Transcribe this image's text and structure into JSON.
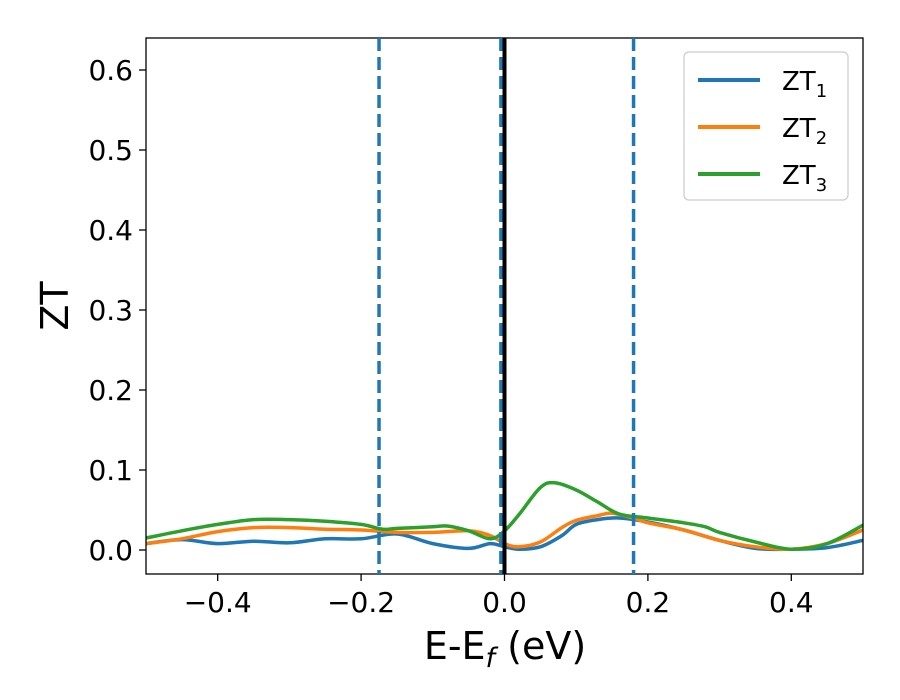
{
  "chart_data": {
    "type": "line",
    "xlabel": "E-E",
    "xlabel_sub": "f",
    "xlabel_unit": " (eV)",
    "ylabel": "ZT",
    "xlim": [
      -0.5,
      0.5
    ],
    "ylim": [
      -0.03,
      0.64
    ],
    "xticks": [
      -0.4,
      -0.2,
      0.0,
      0.2,
      0.4
    ],
    "xtick_labels": [
      "−0.4",
      "−0.2",
      "0.0",
      "0.2",
      "0.4"
    ],
    "yticks": [
      0.0,
      0.1,
      0.2,
      0.3,
      0.4,
      0.5,
      0.6
    ],
    "ytick_labels": [
      "0.0",
      "0.1",
      "0.2",
      "0.3",
      "0.4",
      "0.5",
      "0.6"
    ],
    "grid": false,
    "legend_position": "top-right",
    "vlines": [
      {
        "x": -0.175,
        "style": "dashed",
        "color": "#1f77b4"
      },
      {
        "x": -0.005,
        "style": "dashed",
        "color": "#1f77b4"
      },
      {
        "x": 0.0,
        "style": "solid",
        "color": "#000000"
      },
      {
        "x": 0.18,
        "style": "dashed",
        "color": "#1f77b4"
      }
    ],
    "series": [
      {
        "name": "ZT",
        "name_sub": "1",
        "color": "#1f77b4",
        "x": [
          -0.5,
          -0.45,
          -0.4,
          -0.35,
          -0.3,
          -0.25,
          -0.2,
          -0.15,
          -0.1,
          -0.05,
          -0.02,
          0.0,
          0.02,
          0.05,
          0.08,
          0.1,
          0.13,
          0.16,
          0.2,
          0.25,
          0.3,
          0.35,
          0.4,
          0.45,
          0.5
        ],
        "y": [
          0.008,
          0.013,
          0.008,
          0.011,
          0.009,
          0.014,
          0.014,
          0.02,
          0.008,
          0.002,
          0.008,
          0.004,
          0.001,
          0.004,
          0.018,
          0.032,
          0.038,
          0.04,
          0.035,
          0.025,
          0.012,
          0.002,
          0.001,
          0.003,
          0.012
        ]
      },
      {
        "name": "ZT",
        "name_sub": "2",
        "color": "#ff7f0e",
        "x": [
          -0.5,
          -0.45,
          -0.4,
          -0.35,
          -0.3,
          -0.25,
          -0.2,
          -0.15,
          -0.1,
          -0.05,
          -0.02,
          0.0,
          0.02,
          0.05,
          0.08,
          0.1,
          0.13,
          0.15,
          0.18,
          0.2,
          0.25,
          0.3,
          0.35,
          0.4,
          0.45,
          0.5
        ],
        "y": [
          0.008,
          0.014,
          0.023,
          0.028,
          0.028,
          0.026,
          0.025,
          0.022,
          0.022,
          0.024,
          0.018,
          0.008,
          0.004,
          0.01,
          0.028,
          0.037,
          0.043,
          0.046,
          0.04,
          0.034,
          0.025,
          0.012,
          0.004,
          0.001,
          0.008,
          0.025
        ]
      },
      {
        "name": "ZT",
        "name_sub": "3",
        "color": "#2ca02c",
        "x": [
          -0.5,
          -0.45,
          -0.4,
          -0.35,
          -0.3,
          -0.25,
          -0.2,
          -0.17,
          -0.15,
          -0.1,
          -0.08,
          -0.05,
          -0.02,
          0.0,
          0.02,
          0.05,
          0.07,
          0.1,
          0.13,
          0.16,
          0.2,
          0.25,
          0.28,
          0.3,
          0.35,
          0.4,
          0.45,
          0.5
        ],
        "y": [
          0.015,
          0.024,
          0.032,
          0.038,
          0.038,
          0.036,
          0.032,
          0.026,
          0.027,
          0.029,
          0.03,
          0.024,
          0.014,
          0.024,
          0.044,
          0.078,
          0.084,
          0.075,
          0.06,
          0.045,
          0.04,
          0.034,
          0.029,
          0.022,
          0.01,
          0.001,
          0.008,
          0.031
        ]
      }
    ]
  }
}
